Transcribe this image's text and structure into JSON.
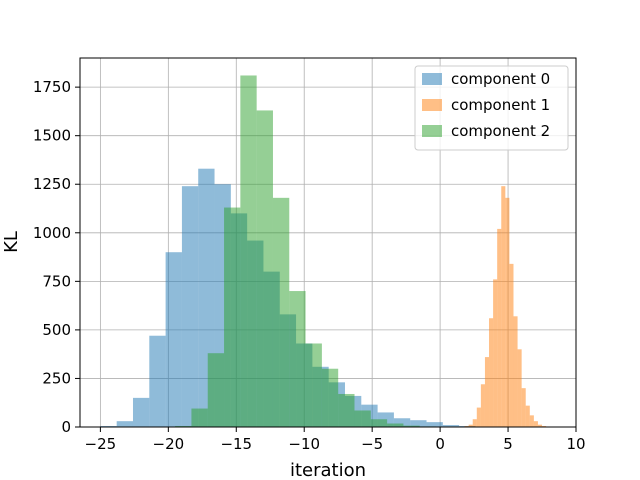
{
  "chart_data": {
    "type": "bar",
    "title": "",
    "xlabel": "iteration",
    "ylabel": "KL",
    "xlim": [
      -26.5,
      10.0
    ],
    "ylim": [
      0,
      1900
    ],
    "xticks": [
      -25,
      -20,
      -15,
      -10,
      -5,
      0,
      5,
      10
    ],
    "xtick_labels": [
      "−25",
      "−20",
      "−15",
      "−10",
      "−5",
      "0",
      "5",
      "10"
    ],
    "yticks": [
      0,
      250,
      500,
      750,
      1000,
      1250,
      1500,
      1750
    ],
    "ytick_labels": [
      "0",
      "250",
      "500",
      "750",
      "1000",
      "1250",
      "1500",
      "1750"
    ],
    "grid": true,
    "legend_position": "top-right",
    "series": [
      {
        "name": "component 0",
        "color": "#1f77b4",
        "opacity": 0.5,
        "bins": [
          [
            -25.0,
            -23.8,
            5
          ],
          [
            -23.8,
            -22.6,
            30
          ],
          [
            -22.6,
            -21.4,
            150
          ],
          [
            -21.4,
            -20.2,
            470
          ],
          [
            -20.2,
            -19.0,
            900
          ],
          [
            -19.0,
            -17.8,
            1240
          ],
          [
            -17.8,
            -16.6,
            1330
          ],
          [
            -16.6,
            -15.4,
            1250
          ],
          [
            -15.4,
            -14.2,
            1100
          ],
          [
            -14.2,
            -13.0,
            960
          ],
          [
            -13.0,
            -11.8,
            800
          ],
          [
            -11.8,
            -10.6,
            580
          ],
          [
            -10.6,
            -9.4,
            430
          ],
          [
            -9.4,
            -8.2,
            310
          ],
          [
            -8.2,
            -7.0,
            230
          ],
          [
            -7.0,
            -5.8,
            160
          ],
          [
            -5.8,
            -4.6,
            115
          ],
          [
            -4.6,
            -3.4,
            75
          ],
          [
            -3.4,
            -2.2,
            45
          ],
          [
            -2.2,
            -1.0,
            35
          ],
          [
            -1.0,
            0.2,
            25
          ],
          [
            0.2,
            1.4,
            10
          ],
          [
            1.4,
            2.6,
            5
          ]
        ]
      },
      {
        "name": "component 1",
        "color": "#ff7f0e",
        "opacity": 0.5,
        "bins": [
          [
            1.8,
            2.1,
            5
          ],
          [
            2.1,
            2.4,
            12
          ],
          [
            2.4,
            2.7,
            40
          ],
          [
            2.7,
            3.0,
            100
          ],
          [
            3.0,
            3.3,
            220
          ],
          [
            3.3,
            3.6,
            360
          ],
          [
            3.6,
            3.9,
            560
          ],
          [
            3.9,
            4.2,
            760
          ],
          [
            4.2,
            4.5,
            1020
          ],
          [
            4.5,
            4.8,
            1240
          ],
          [
            4.8,
            5.1,
            1180
          ],
          [
            5.1,
            5.4,
            840
          ],
          [
            5.4,
            5.7,
            570
          ],
          [
            5.7,
            6.0,
            400
          ],
          [
            6.0,
            6.3,
            200
          ],
          [
            6.3,
            6.6,
            110
          ],
          [
            6.6,
            6.9,
            60
          ],
          [
            6.9,
            7.2,
            30
          ],
          [
            7.2,
            7.5,
            12
          ],
          [
            7.5,
            7.8,
            5
          ],
          [
            7.8,
            8.1,
            2
          ]
        ]
      },
      {
        "name": "component 2",
        "color": "#2ca02c",
        "opacity": 0.5,
        "bins": [
          [
            -19.5,
            -18.3,
            5
          ],
          [
            -18.3,
            -17.1,
            95
          ],
          [
            -17.1,
            -15.9,
            380
          ],
          [
            -15.9,
            -14.7,
            1130
          ],
          [
            -14.7,
            -13.5,
            1810
          ],
          [
            -13.5,
            -12.3,
            1630
          ],
          [
            -12.3,
            -11.1,
            1180
          ],
          [
            -11.1,
            -9.9,
            700
          ],
          [
            -9.9,
            -8.7,
            430
          ],
          [
            -8.7,
            -7.5,
            300
          ],
          [
            -7.5,
            -6.3,
            170
          ],
          [
            -6.3,
            -5.1,
            85
          ],
          [
            -5.1,
            -3.9,
            40
          ],
          [
            -3.9,
            -2.7,
            18
          ],
          [
            -2.7,
            -1.5,
            7
          ],
          [
            -1.5,
            -0.3,
            3
          ]
        ]
      }
    ]
  }
}
